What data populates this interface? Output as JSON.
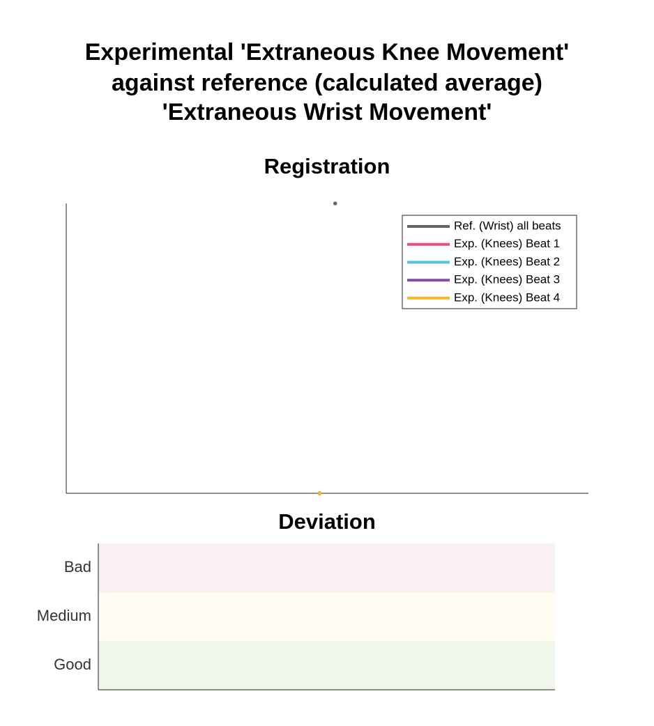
{
  "title": [
    "Experimental 'Extraneous Knee Movement'",
    "against reference (calculated average)",
    "'Extraneous Wrist Movement'"
  ],
  "chart_data": [
    {
      "type": "line",
      "title": "Registration",
      "xlim": [
        0,
        1
      ],
      "ylim": [
        0,
        1
      ],
      "legend": "upper right",
      "series": [
        {
          "name": "Ref. (Wrist) all beats",
          "color": "#666666",
          "x": [
            0.515
          ],
          "values": [
            1
          ]
        },
        {
          "name": "Exp. (Knees) Beat 1",
          "color": "#e64c85",
          "x": [
            0.485
          ],
          "values": [
            0
          ]
        },
        {
          "name": "Exp. (Knees) Beat 2",
          "color": "#5bbfe6",
          "x": [
            0.485
          ],
          "values": [
            0
          ]
        },
        {
          "name": "Exp. (Knees) Beat 3",
          "color": "#7f52a6",
          "x": [
            0.485
          ],
          "values": [
            0
          ]
        },
        {
          "name": "Exp. (Knees) Beat 4",
          "color": "#f7b52b",
          "x": [
            0.485
          ],
          "values": [
            0
          ]
        }
      ]
    },
    {
      "type": "bands",
      "title": "Deviation",
      "categories": [
        "Good",
        "Medium",
        "Bad"
      ],
      "colors": [
        "#f1f6ea",
        "#fffdf2",
        "#fbf0f1"
      ]
    }
  ]
}
